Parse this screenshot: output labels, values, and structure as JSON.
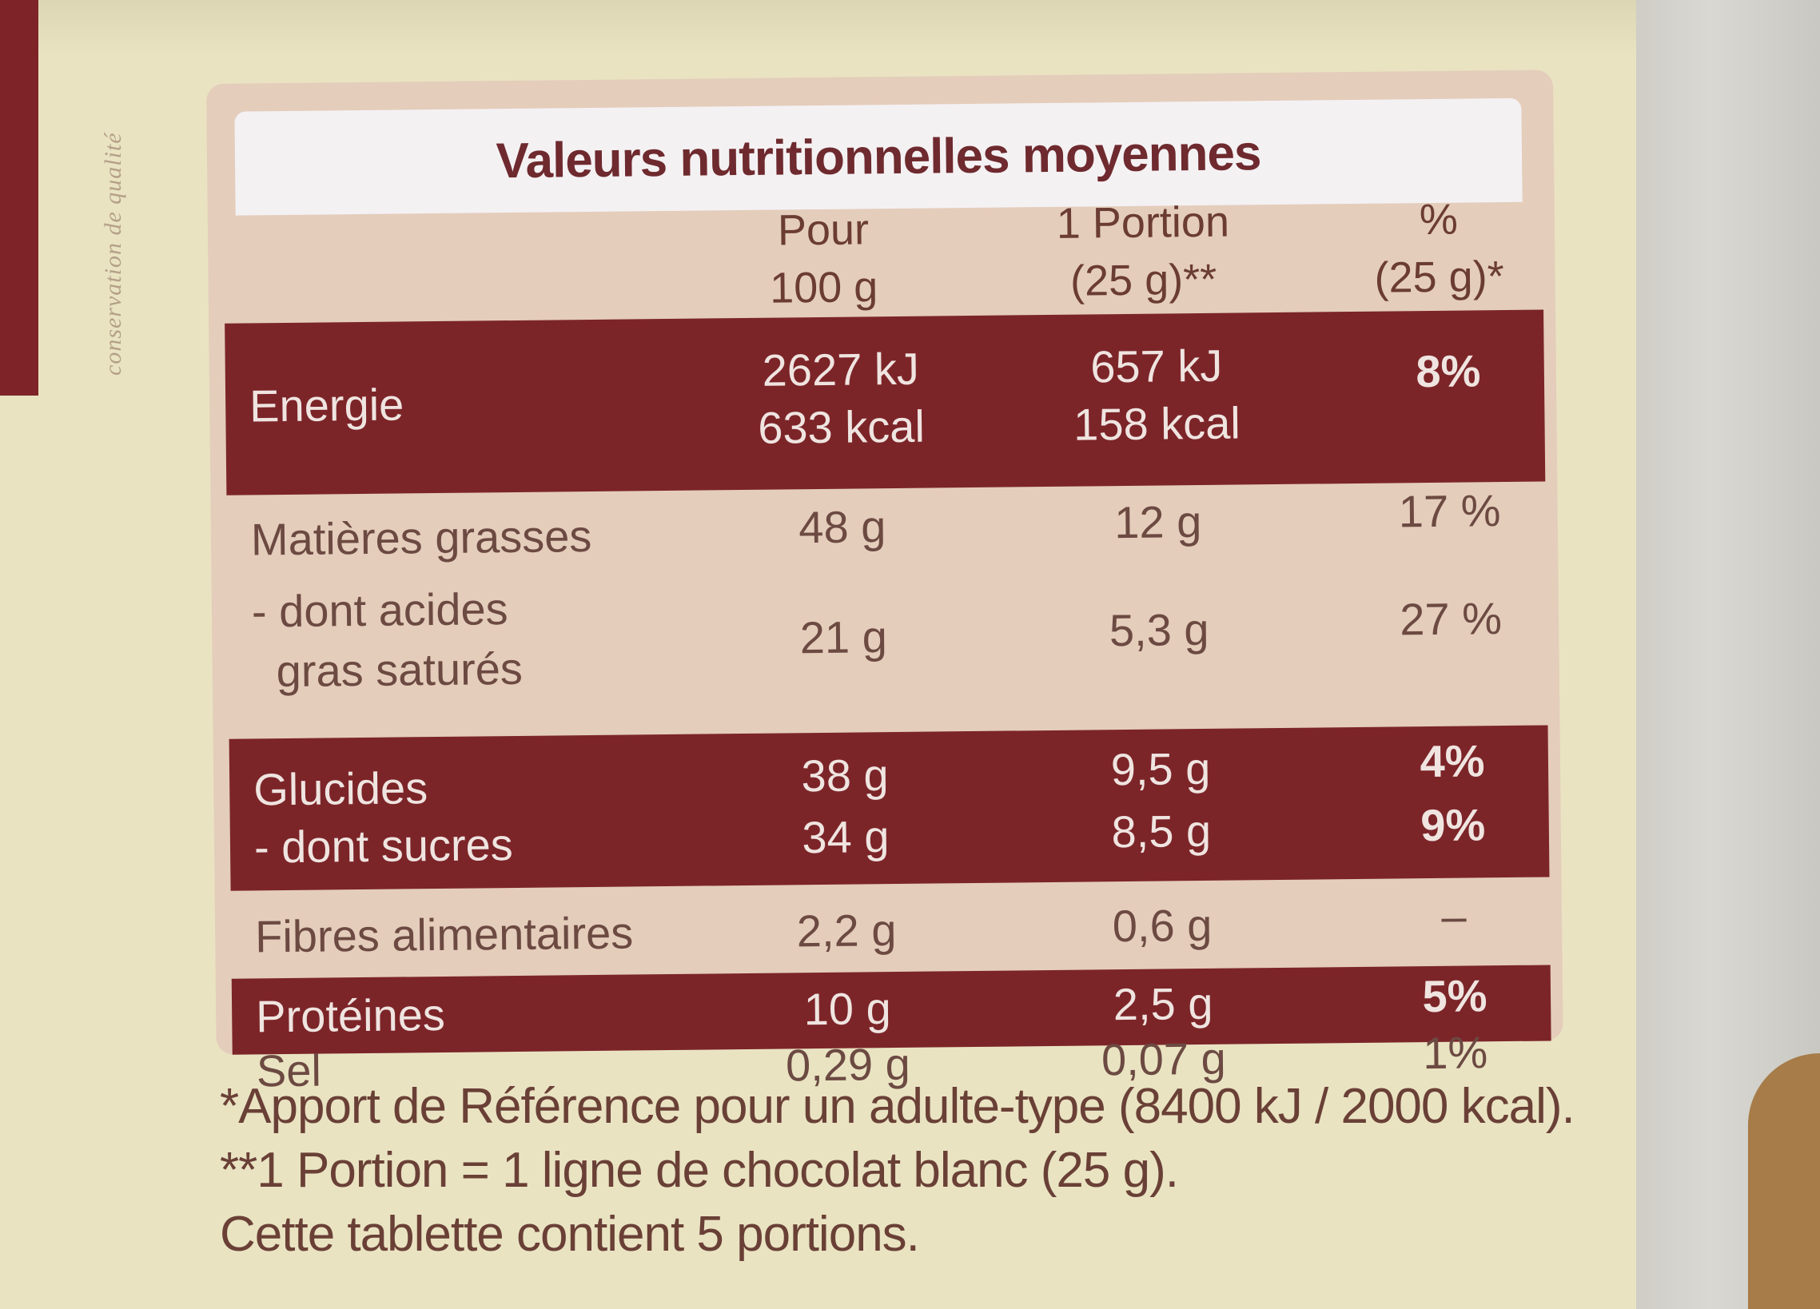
{
  "side_text": "conservation de qualité",
  "title": "Valeurs nutritionnelles moyennes",
  "headers": {
    "col1": [
      "Pour",
      "100 g"
    ],
    "col2": [
      "1 Portion",
      "(25 g)**"
    ],
    "col3": [
      "%",
      "(25 g)*"
    ]
  },
  "rows": [
    {
      "label": "Energie",
      "v100": [
        "2627 kJ",
        "633 kcal"
      ],
      "portion": [
        "657 kJ",
        "158 kcal"
      ],
      "pct": "8%"
    },
    {
      "label": "Matières grasses",
      "v100": "48 g",
      "portion": "12 g",
      "pct": "17 %"
    },
    {
      "label": [
        "- dont acides",
        "gras saturés"
      ],
      "v100": "21 g",
      "portion": "5,3 g",
      "pct": "27 %"
    },
    {
      "label": "Glucides",
      "v100": "38 g",
      "portion": "9,5 g",
      "pct": "4%"
    },
    {
      "label": "- dont sucres",
      "v100": "34 g",
      "portion": "8,5 g",
      "pct": "9%"
    },
    {
      "label": "Fibres alimentaires",
      "v100": "2,2 g",
      "portion": "0,6 g",
      "pct": "–"
    },
    {
      "label": "Protéines",
      "v100": "10 g",
      "portion": "2,5 g",
      "pct": "5%"
    },
    {
      "label": "Sel",
      "v100": "0,29 g",
      "portion": "0,07 g",
      "pct": "1%"
    }
  ],
  "footnotes": [
    "*Apport de Référence pour un adulte-type (8400 kJ / 2000 kcal).",
    "**1 Portion = 1 ligne de chocolat blanc (25 g).",
    "Cette tablette contient 5 portions."
  ],
  "colors": {
    "dark_band": "#7c2529",
    "panel": "#e4cdbb",
    "background": "#e9e3c2"
  }
}
